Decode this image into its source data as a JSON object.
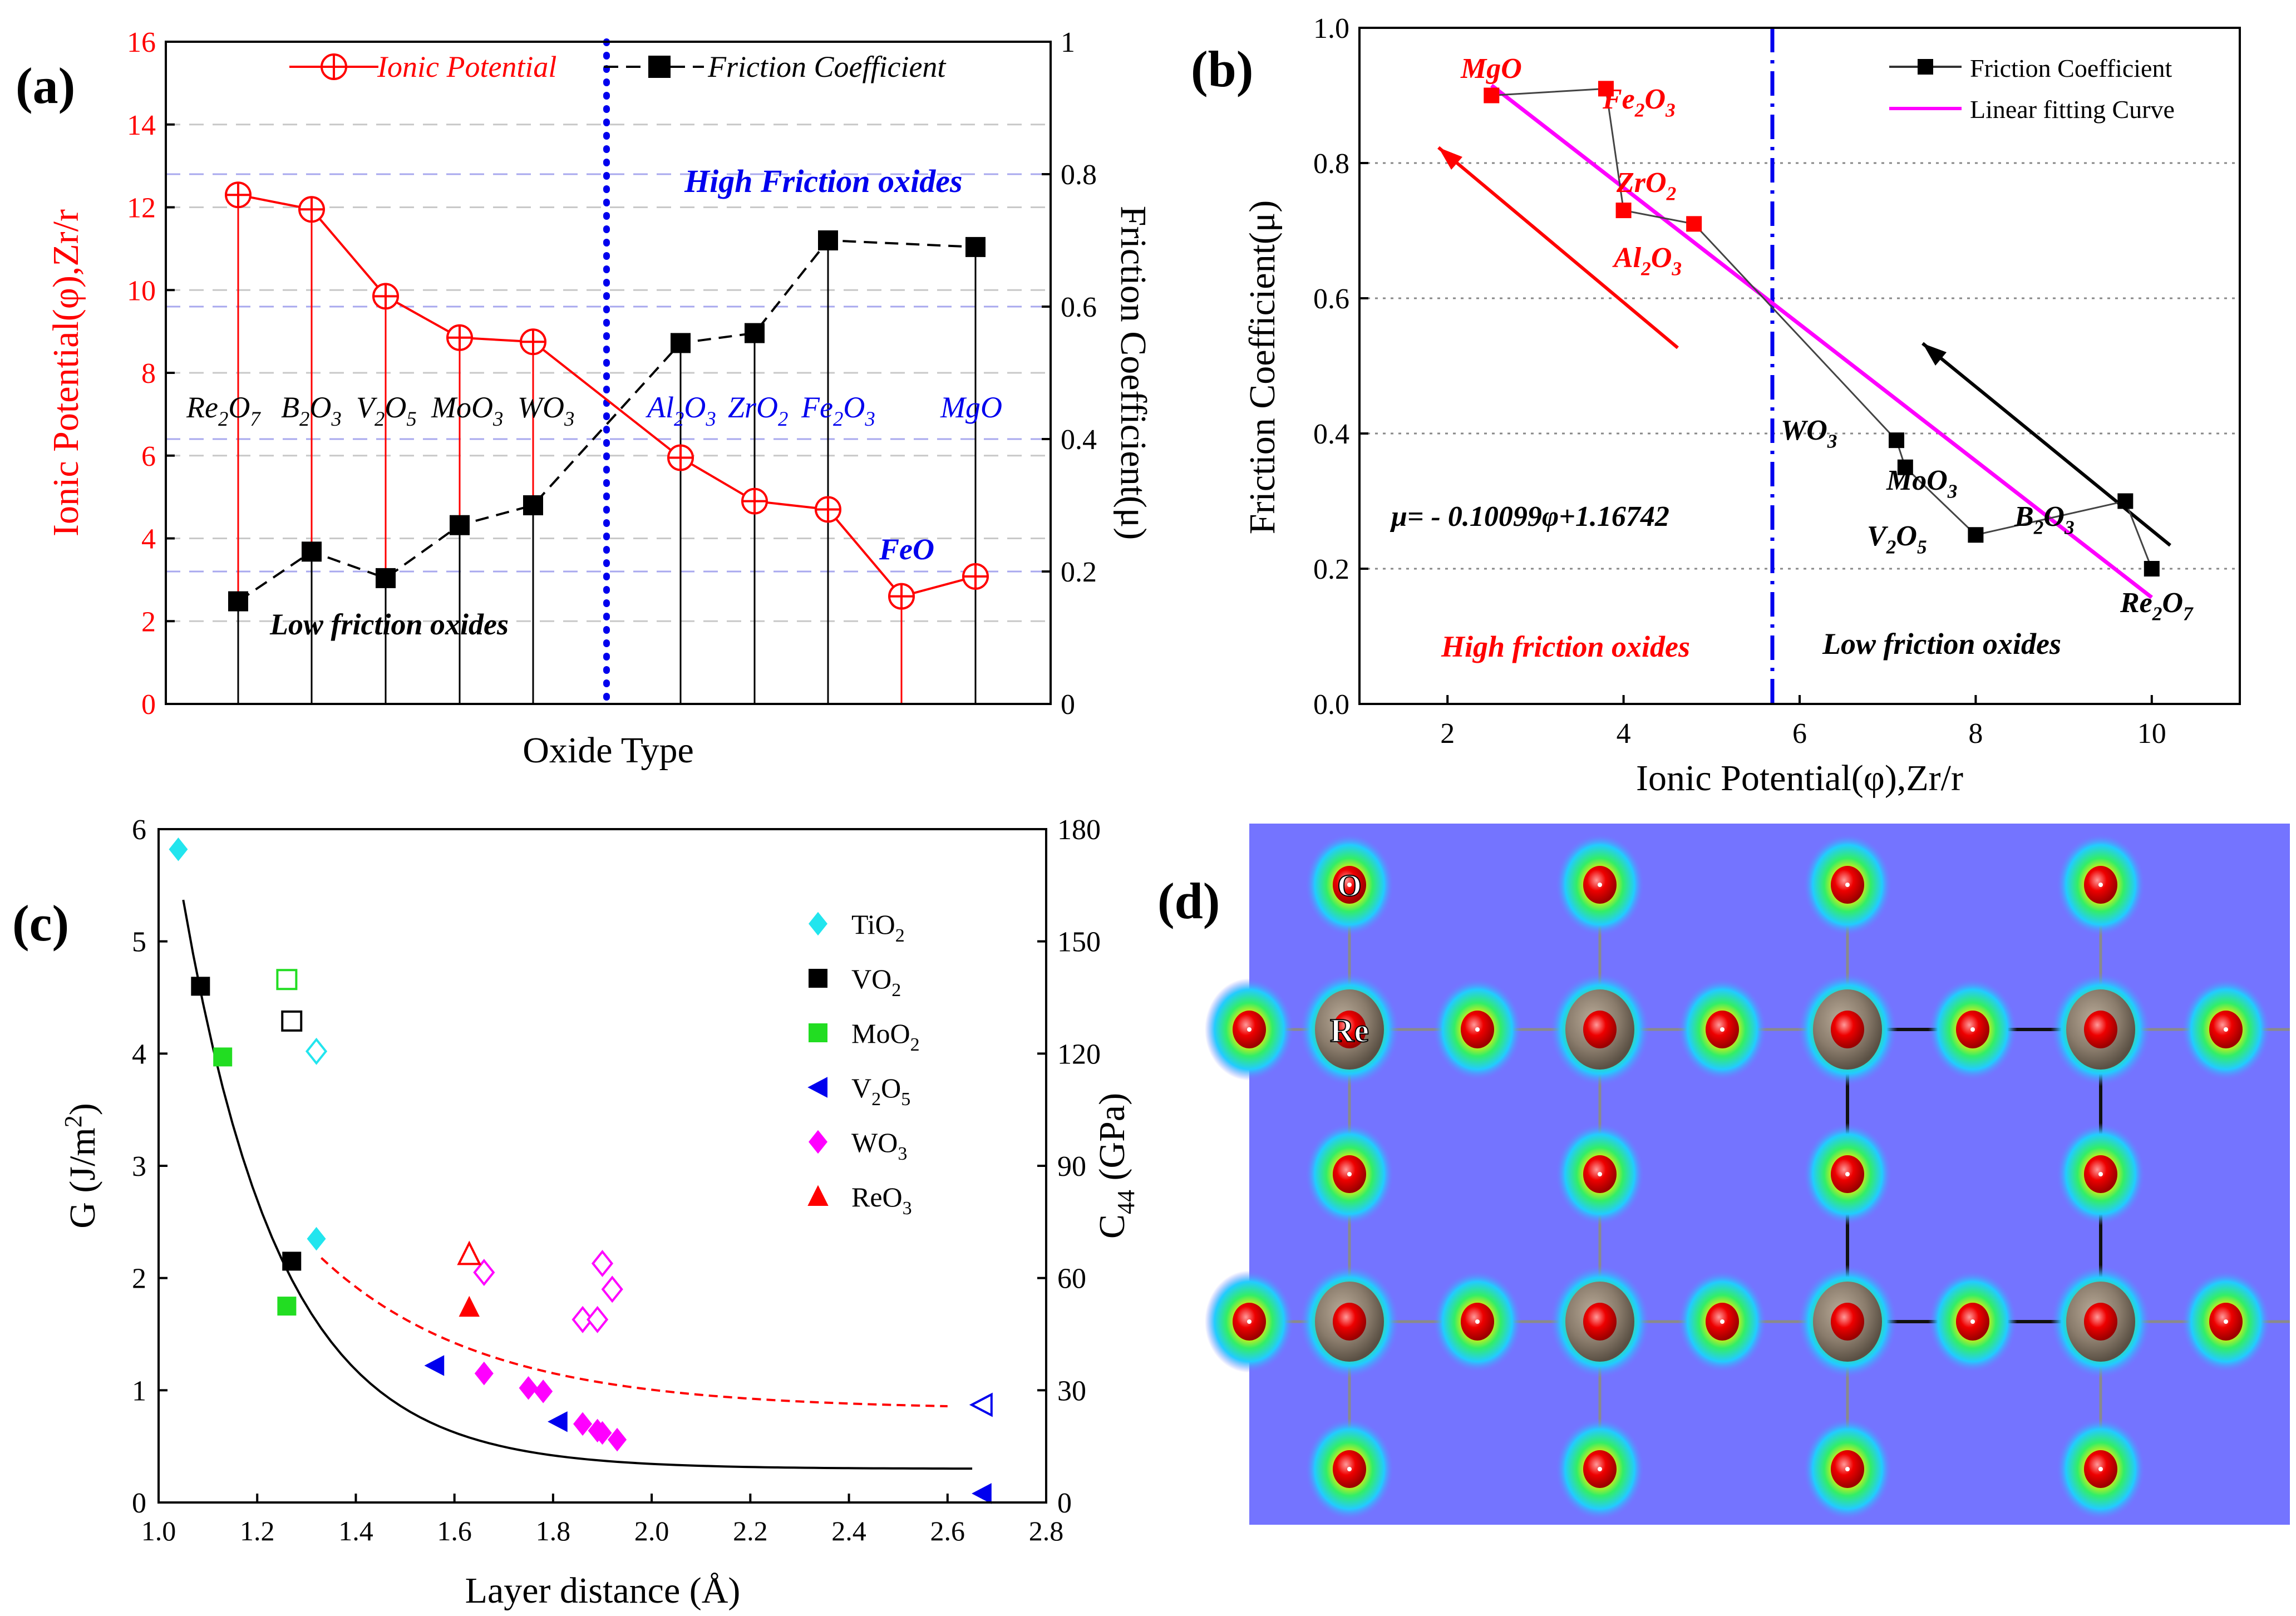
{
  "chart_data": [
    {
      "panel": "a",
      "type": "line",
      "panel_label": "(a)",
      "xlabel": "Oxide Type",
      "ylabel_left": "Ionic Potential(φ),Zr/r",
      "ylabel_right": "Friction Coefficient(μ)",
      "ylim_left": [
        0,
        16
      ],
      "ylim_right": [
        0,
        1
      ],
      "yticks_left": [
        "0",
        "2",
        "4",
        "6",
        "8",
        "10",
        "12",
        "14",
        "16"
      ],
      "yticks_right": [
        "0",
        "0.2",
        "0.4",
        "0.6",
        "0.8",
        "1"
      ],
      "categories": [
        "Re2O7",
        "B2O3",
        "V2O5",
        "MoO3",
        "WO3",
        "Al2O3",
        "ZrO2",
        "Fe2O3",
        "FeO",
        "MgO"
      ],
      "category_labels": [
        {
          "main": "Re",
          "sub": "2",
          "tail": "O",
          "sub2": "7"
        },
        {
          "main": "B",
          "sub": "2",
          "tail": "O",
          "sub2": "3"
        },
        {
          "main": "V",
          "sub": "2",
          "tail": "O",
          "sub2": "5"
        },
        {
          "main": "MoO",
          "sub": "3",
          "tail": "",
          "sub2": ""
        },
        {
          "main": "WO",
          "sub": "3",
          "tail": "",
          "sub2": ""
        },
        {
          "main": "Al",
          "sub": "2",
          "tail": "O",
          "sub2": "3"
        },
        {
          "main": "ZrO",
          "sub": "2",
          "tail": "",
          "sub2": ""
        },
        {
          "main": "Fe",
          "sub": "2",
          "tail": "O",
          "sub2": "3"
        },
        {
          "main": "FeO",
          "sub": "",
          "tail": "",
          "sub2": ""
        },
        {
          "main": "MgO",
          "sub": "",
          "tail": "",
          "sub2": ""
        }
      ],
      "series": [
        {
          "name": "Ionic Potential",
          "axis": "left",
          "color": "#ff0000",
          "values": [
            12.3,
            11.95,
            9.85,
            8.85,
            8.75,
            5.95,
            4.9,
            4.7,
            2.6,
            3.08
          ]
        },
        {
          "name": "Friction Coefficient",
          "axis": "right",
          "color": "#000000",
          "values": [
            0.155,
            0.23,
            0.19,
            0.27,
            0.3,
            0.545,
            0.56,
            0.7,
            null,
            0.69
          ]
        }
      ],
      "annotations": {
        "high": "High Friction oxides",
        "low": "Low friction oxides",
        "feo": "FeO"
      }
    },
    {
      "panel": "b",
      "type": "scatter",
      "panel_label": "(b)",
      "xlabel": "Ionic Potential(φ),Zr/r",
      "ylabel": "Friction Coefficient(μ)",
      "xlim": [
        1,
        11
      ],
      "ylim": [
        0,
        1
      ],
      "xticks": [
        "2",
        "4",
        "6",
        "8",
        "10"
      ],
      "yticks": [
        "0.0",
        "0.2",
        "0.4",
        "0.6",
        "0.8",
        "1.0"
      ],
      "legend": [
        "Friction Coefficient",
        "Linear fitting Curve"
      ],
      "points": [
        {
          "name": "MgO",
          "x": 2.5,
          "y": 0.9,
          "color": "#ff0000"
        },
        {
          "name": "Fe2O3",
          "x": 3.8,
          "y": 0.91,
          "color": "#ff0000"
        },
        {
          "name": "ZrO2",
          "x": 4.0,
          "y": 0.73,
          "color": "#ff0000"
        },
        {
          "name": "Al2O3",
          "x": 4.8,
          "y": 0.71,
          "color": "#ff0000"
        },
        {
          "name": "WO3",
          "x": 7.1,
          "y": 0.39,
          "color": "#000000"
        },
        {
          "name": "MoO3",
          "x": 7.2,
          "y": 0.35,
          "color": "#000000"
        },
        {
          "name": "V2O5",
          "x": 8.0,
          "y": 0.25,
          "color": "#000000"
        },
        {
          "name": "B2O3",
          "x": 9.7,
          "y": 0.3,
          "color": "#000000"
        },
        {
          "name": "Re2O7",
          "x": 10.0,
          "y": 0.2,
          "color": "#000000"
        }
      ],
      "point_labels": [
        {
          "main": "MgO",
          "sub": "",
          "tail": "",
          "sub2": ""
        },
        {
          "main": "Fe",
          "sub": "2",
          "tail": "O",
          "sub2": "3"
        },
        {
          "main": "ZrO",
          "sub": "2",
          "tail": "",
          "sub2": ""
        },
        {
          "main": "Al",
          "sub": "2",
          "tail": "O",
          "sub2": "3"
        },
        {
          "main": "WO",
          "sub": "3",
          "tail": "",
          "sub2": ""
        },
        {
          "main": "MoO",
          "sub": "3",
          "tail": "",
          "sub2": ""
        },
        {
          "main": "V",
          "sub": "2",
          "tail": "O",
          "sub2": "5"
        },
        {
          "main": "B",
          "sub": "2",
          "tail": "O",
          "sub2": "3"
        },
        {
          "main": "Re",
          "sub": "2",
          "tail": "O",
          "sub2": "7"
        }
      ],
      "fit": {
        "slope": -0.10099,
        "intercept": 1.16742,
        "x_range": [
          2.5,
          10.0
        ],
        "equation": "μ= - 0.10099φ+1.16742"
      },
      "divider_x": 6,
      "annotations": {
        "high": "High friction oxides",
        "low": "Low friction oxides"
      }
    },
    {
      "panel": "c",
      "type": "scatter",
      "panel_label": "(c)",
      "xlabel": "Layer distance (Å)",
      "ylabel_left": "G (J/m",
      "ylabel_left_sup": "2",
      "ylabel_left_tail": ")",
      "ylabel_right": "C",
      "ylabel_right_sub": "44",
      "ylabel_right_tail": " (GPa)",
      "xlim": [
        1.0,
        2.8
      ],
      "ylim_left": [
        0,
        6
      ],
      "ylim_right": [
        0,
        180
      ],
      "xticks": [
        "1.0",
        "1.2",
        "1.4",
        "1.6",
        "1.8",
        "2.0",
        "2.2",
        "2.4",
        "2.6",
        "2.8"
      ],
      "yticks_left": [
        "0",
        "1",
        "2",
        "3",
        "4",
        "5",
        "6"
      ],
      "yticks_right": [
        "0",
        "30",
        "60",
        "90",
        "120",
        "150",
        "180"
      ],
      "legend": [
        {
          "main": "TiO",
          "sub": "2",
          "tail": "",
          "sub2": ""
        },
        {
          "main": "VO",
          "sub": "2",
          "tail": "",
          "sub2": ""
        },
        {
          "main": "MoO",
          "sub": "2",
          "tail": "",
          "sub2": ""
        },
        {
          "main": "V",
          "sub": "2",
          "tail": "O",
          "sub2": "5"
        },
        {
          "main": "WO",
          "sub": "3",
          "tail": "",
          "sub2": ""
        },
        {
          "main": "ReO",
          "sub": "3",
          "tail": "",
          "sub2": ""
        }
      ],
      "series": [
        {
          "name": "TiO2",
          "marker": "diamond",
          "color": "#22e5ee",
          "filled": [
            [
              1.04,
              5.82
            ],
            [
              1.32,
              2.35
            ]
          ],
          "open": [
            [
              1.32,
              4.02
            ]
          ]
        },
        {
          "name": "VO2",
          "marker": "square",
          "color": "#000000",
          "filled": [
            [
              1.085,
              4.6
            ],
            [
              1.27,
              2.15
            ]
          ],
          "open": [
            [
              1.27,
              4.29
            ]
          ]
        },
        {
          "name": "MoO2",
          "marker": "square",
          "color": "#22dd22",
          "filled": [
            [
              1.13,
              3.97
            ],
            [
              1.26,
              1.75
            ]
          ],
          "open": [
            [
              1.26,
              4.66
            ]
          ]
        },
        {
          "name": "V2O5",
          "marker": "tri-left",
          "color": "#0000ee",
          "filled": [
            [
              1.56,
              1.22
            ],
            [
              1.81,
              0.72
            ],
            [
              2.67,
              0.08
            ]
          ],
          "open": [
            [
              2.67,
              0.87
            ]
          ]
        },
        {
          "name": "WO3",
          "marker": "diamond",
          "color": "#ff00ff",
          "filled": [
            [
              1.66,
              1.15
            ],
            [
              1.75,
              1.02
            ],
            [
              1.78,
              0.99
            ],
            [
              1.86,
              0.7
            ],
            [
              1.89,
              0.64
            ],
            [
              1.9,
              0.62
            ],
            [
              1.93,
              0.56
            ]
          ],
          "open": [
            [
              1.66,
              2.05
            ],
            [
              1.86,
              1.63
            ],
            [
              1.89,
              1.63
            ],
            [
              1.9,
              2.13
            ],
            [
              1.92,
              1.9
            ]
          ]
        },
        {
          "name": "ReO3",
          "marker": "triangle",
          "color": "#ff0000",
          "filled": [
            [
              1.63,
              1.74
            ]
          ],
          "open": [
            [
              1.63,
              2.21
            ]
          ]
        }
      ],
      "fits": [
        {
          "name": "G fit",
          "style": "solid",
          "color": "#000000",
          "x_range": [
            1.05,
            2.65
          ],
          "a": 0.3,
          "b": 5.07,
          "k": 5.0
        },
        {
          "name": "C44 fit",
          "style": "dashed",
          "color": "#ff0000",
          "x_range": [
            1.33,
            2.6
          ],
          "a": 0.83,
          "b": 3.17,
          "k": 3.05
        }
      ]
    },
    {
      "panel": "d",
      "type": "heatmap",
      "panel_label": "(d)",
      "atom_labels": [
        "O",
        "Re"
      ],
      "background_color": "#7474ff"
    }
  ]
}
